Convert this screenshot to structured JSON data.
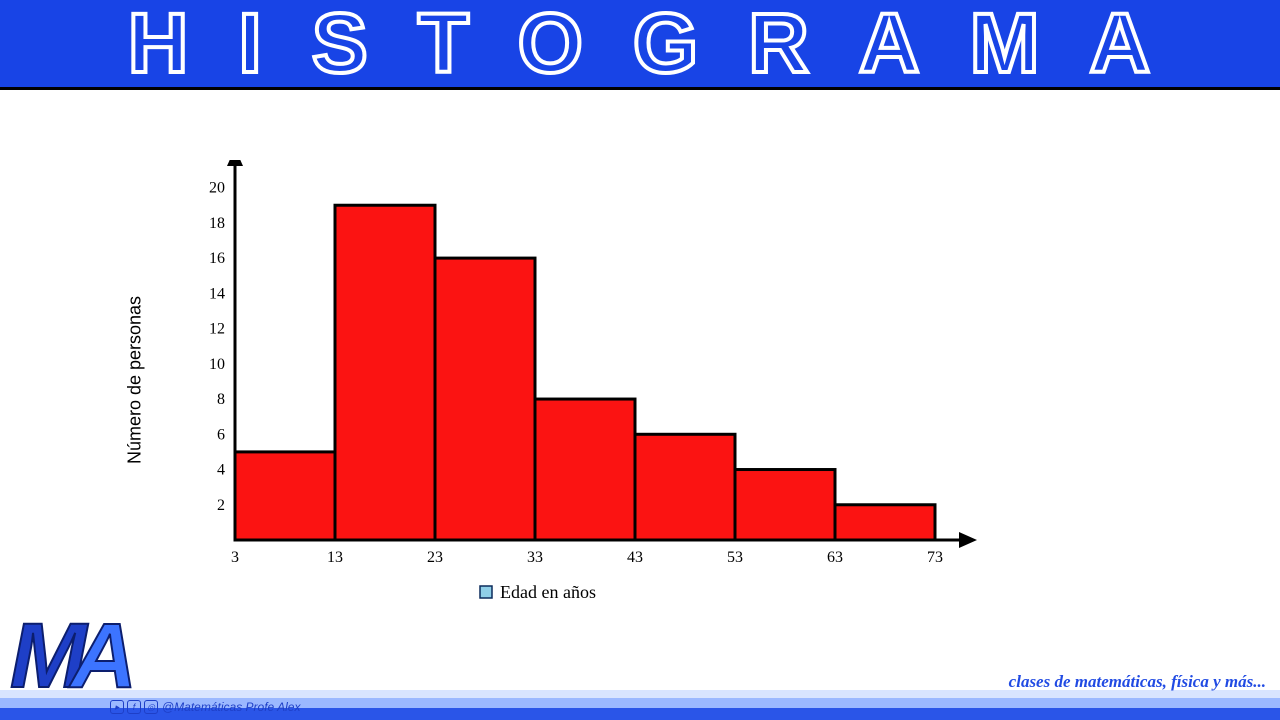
{
  "banner": {
    "title": "HISTOGRAMA",
    "bg_color": "#1844e6",
    "title_stroke": "#ffffff",
    "title_fontsize": 84,
    "letter_spacing": 50
  },
  "chart": {
    "type": "histogram",
    "ylabel": "Número de personas",
    "xlabel": "Edad en años",
    "x_ticks": [
      3,
      13,
      23,
      33,
      43,
      53,
      63,
      73
    ],
    "y_ticks": [
      2,
      4,
      6,
      8,
      10,
      12,
      14,
      16,
      18,
      20
    ],
    "ylim": [
      0,
      21
    ],
    "bins": [
      {
        "from": 3,
        "to": 13,
        "value": 5
      },
      {
        "from": 13,
        "to": 23,
        "value": 19
      },
      {
        "from": 23,
        "to": 33,
        "value": 16
      },
      {
        "from": 33,
        "to": 43,
        "value": 8
      },
      {
        "from": 43,
        "to": 53,
        "value": 6
      },
      {
        "from": 53,
        "to": 63,
        "value": 4
      },
      {
        "from": 63,
        "to": 73,
        "value": 2
      }
    ],
    "bar_fill": "#fb1312",
    "bar_stroke": "#000000",
    "bar_stroke_width": 3,
    "axis_color": "#000000",
    "axis_width": 3,
    "tick_fontsize": 16,
    "label_fontsize": 18,
    "legend_marker_fill": "#8fcfe8",
    "legend_marker_stroke": "#0b2b5c",
    "background": "#ffffff"
  },
  "footer": {
    "tagline": "clases de matemáticas, física y más...",
    "tagline_color": "#214be3",
    "handle": "@Matemáticas Profe Alex",
    "logo_text": "MA",
    "logo_colors": [
      "#1e3fc7",
      "#3c74ff"
    ],
    "strip_colors": [
      "#d8e4ff",
      "#9bb8ff",
      "#2a55e8"
    ]
  }
}
